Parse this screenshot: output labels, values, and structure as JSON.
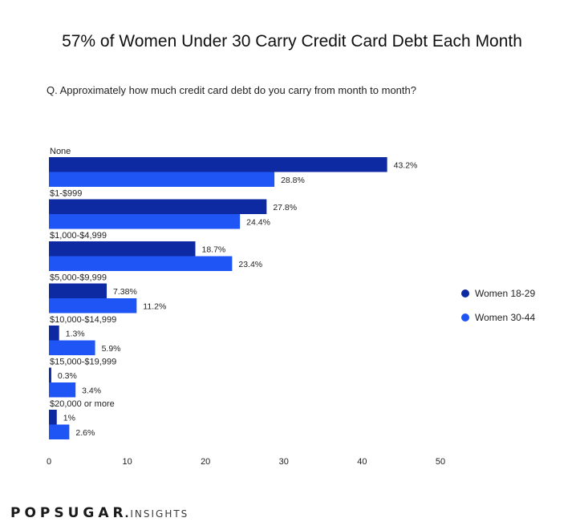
{
  "title": "57% of Women Under 30 Carry Credit Card Debt Each Month",
  "question": "Q. Approximately how much credit card debt do you carry from month to month?",
  "brand": {
    "main": "POPSUGAR",
    "dot": ".",
    "sub": "INSIGHTS"
  },
  "colors": {
    "women_18_29": "#0d2aa3",
    "women_30_44": "#1f55f5"
  },
  "chart_data": {
    "type": "bar",
    "orientation": "horizontal",
    "categories": [
      "None",
      "$1-$999",
      "$1,000-$4,999",
      "$5,000-$9,999",
      "$10,000-$14,999",
      "$15,000-$19,999",
      "$20,000 or more"
    ],
    "series": [
      {
        "name": "Women 18-29",
        "values": [
          43.2,
          27.8,
          18.7,
          7.38,
          1.3,
          0.3,
          1
        ],
        "labels": [
          "43.2%",
          "27.8%",
          "18.7%",
          "7.38%",
          "1.3%",
          "0.3%",
          "1%"
        ]
      },
      {
        "name": "Women 30-44",
        "values": [
          28.8,
          24.4,
          23.4,
          11.2,
          5.9,
          3.4,
          2.6
        ],
        "labels": [
          "28.8%",
          "24.4%",
          "23.4%",
          "11.2%",
          "5.9%",
          "3.4%",
          "2.6%"
        ]
      }
    ],
    "xlim": [
      0,
      50
    ],
    "xticks": [
      "0",
      "10",
      "20",
      "30",
      "40",
      "50"
    ],
    "legend_position": "right",
    "grid": false
  }
}
